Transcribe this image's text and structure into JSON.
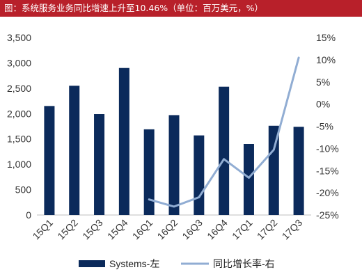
{
  "title": "图：系统服务业务同比增速上升至10.46%（单位：百万美元，%）",
  "chart_data": {
    "type": "bar",
    "categories": [
      "15Q1",
      "15Q2",
      "15Q3",
      "15Q4",
      "16Q1",
      "16Q2",
      "16Q3",
      "16Q4",
      "17Q1",
      "17Q2",
      "17Q3"
    ],
    "series": [
      {
        "name": "Systems-左",
        "type": "bar",
        "axis": "left",
        "color": "#0b2a5b",
        "values": [
          2150,
          2550,
          1990,
          2900,
          1690,
          1970,
          1570,
          2530,
          1400,
          1760,
          1740
        ]
      },
      {
        "name": "同比增长率-右",
        "type": "line",
        "axis": "right",
        "color": "#91add3",
        "values": [
          null,
          null,
          null,
          null,
          -21.5,
          -23.1,
          -21.0,
          -12.4,
          -16.6,
          -10.3,
          10.46
        ]
      }
    ],
    "y_left": {
      "min": 0,
      "max": 3500,
      "step": 500,
      "tick_labels": [
        "0",
        "500",
        "1,000",
        "1,500",
        "2,000",
        "2,500",
        "3,000",
        "3,500"
      ]
    },
    "y_right": {
      "min": -25,
      "max": 15,
      "step": 5,
      "tick_labels": [
        "-25%",
        "-20%",
        "-15%",
        "-10%",
        "-5%",
        "0%",
        "5%",
        "10%",
        "15%"
      ]
    },
    "grid": false,
    "legend_position": "bottom"
  }
}
